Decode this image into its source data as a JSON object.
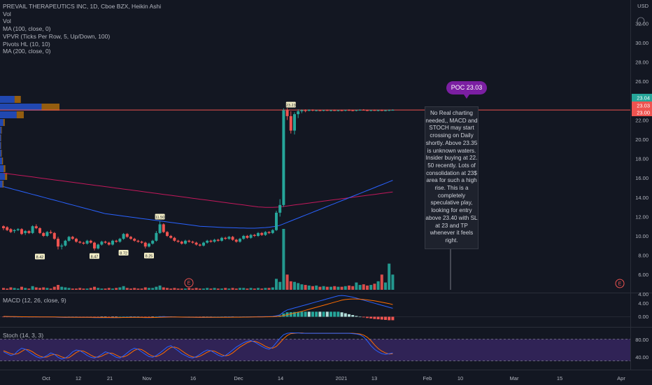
{
  "legend": {
    "title": "PREVAIL THERAPEUTICS INC, 1D, Cboe BZX, Heikin Ashi",
    "lines": [
      "Vol",
      "Vol",
      "MA (100, close, 0)",
      "VPVR (Ticks Per Row, 5, Up/Down, 100)",
      "Pivots HL (10, 10)",
      "MA (200, close, 0)"
    ]
  },
  "axis": {
    "currency": "USD",
    "price_ticks": [
      "32.00",
      "30.00",
      "28.00",
      "26.00",
      "22.00",
      "20.00",
      "18.00",
      "16.00",
      "14.00",
      "12.00",
      "10.00",
      "8.00",
      "6.00",
      "4.00"
    ],
    "badges": [
      {
        "text": "23.04",
        "color": "#26a69a"
      },
      {
        "text": "23.03",
        "color": "#ef5350"
      },
      {
        "text": "23.00",
        "color": "#ef5350"
      }
    ],
    "macd_ticks": [
      "4.00",
      "0.00"
    ],
    "stoch_ticks": [
      "80.00",
      "40.00"
    ],
    "time_labels": [
      "Oct",
      "12",
      "21",
      "Nov",
      "16",
      "Dec",
      "14",
      "2021",
      "13",
      "Feb",
      "10",
      "Mar",
      "15",
      "Apr"
    ]
  },
  "indicators": {
    "macd_label": "MACD (12, 26, close, 9)",
    "stoch_label": "Stoch (14, 3, 3)"
  },
  "poc": {
    "label": "POC 23.03",
    "value": 23.03
  },
  "annotation": "No Real charting needed,, MACD and STOCH may start crossing on Daily shortly. Above 23.35 is unknown waters. Insider buying at 22. 50 recently. Lots of consolidation at 23$ area for such a high rise. This is a completely speculative play, looking for entry above 23.40 with SL at 23 and TP whenever it feels right.",
  "pivot_labels": [
    "23.23",
    "8.42",
    "8.47",
    "8.72",
    "8.25",
    "11.50"
  ],
  "earnings_markers": [
    "E",
    "E"
  ],
  "colors": {
    "up": "#26a69a",
    "down": "#ef5350",
    "ma100": "#2962ff",
    "ma200": "#c2185b",
    "poc": "#7b1fa2",
    "macd": "#2962ff",
    "signal": "#ff6d00",
    "stoch_k": "#2962ff",
    "stoch_d": "#ff6d00"
  },
  "chart_data": {
    "type": "candlestick",
    "price_scale": [
      4,
      32
    ],
    "candles": [
      [
        11.0,
        11.1,
        10.6,
        10.8
      ],
      [
        10.9,
        11.0,
        10.5,
        10.6
      ],
      [
        10.7,
        10.8,
        10.3,
        10.4
      ],
      [
        10.5,
        10.7,
        10.3,
        10.6
      ],
      [
        10.6,
        10.8,
        10.5,
        10.7
      ],
      [
        10.7,
        10.8,
        10.1,
        10.2
      ],
      [
        10.3,
        10.6,
        10.1,
        10.5
      ],
      [
        10.5,
        10.6,
        10.2,
        10.3
      ],
      [
        10.3,
        11.1,
        10.2,
        11.0
      ],
      [
        11.0,
        11.2,
        10.7,
        10.8
      ],
      [
        10.8,
        10.9,
        10.2,
        10.3
      ],
      [
        10.3,
        10.4,
        9.9,
        10.0
      ],
      [
        10.0,
        10.5,
        9.9,
        10.4
      ],
      [
        10.4,
        10.6,
        10.2,
        10.3
      ],
      [
        10.3,
        10.4,
        9.6,
        9.7
      ],
      [
        9.7,
        9.9,
        8.6,
        8.9
      ],
      [
        8.9,
        9.2,
        8.6,
        9.0
      ],
      [
        9.0,
        9.6,
        8.9,
        9.5
      ],
      [
        9.5,
        10.0,
        9.4,
        9.9
      ],
      [
        9.9,
        10.0,
        9.6,
        9.7
      ],
      [
        9.7,
        9.8,
        9.3,
        9.4
      ],
      [
        9.4,
        9.5,
        9.2,
        9.3
      ],
      [
        9.3,
        9.4,
        9.1,
        9.2
      ],
      [
        9.2,
        9.6,
        9.1,
        9.5
      ],
      [
        9.5,
        9.6,
        9.2,
        9.3
      ],
      [
        9.3,
        9.4,
        8.5,
        8.7
      ],
      [
        8.7,
        9.2,
        8.6,
        9.1
      ],
      [
        9.1,
        9.5,
        9.0,
        9.4
      ],
      [
        9.4,
        9.5,
        9.2,
        9.3
      ],
      [
        9.3,
        9.4,
        9.0,
        9.1
      ],
      [
        9.1,
        9.6,
        9.0,
        9.5
      ],
      [
        9.5,
        9.6,
        9.3,
        9.4
      ],
      [
        9.4,
        9.8,
        9.3,
        9.7
      ],
      [
        9.7,
        10.3,
        9.6,
        10.2
      ],
      [
        10.2,
        10.3,
        9.8,
        9.9
      ],
      [
        9.9,
        10.0,
        9.6,
        9.7
      ],
      [
        9.7,
        9.8,
        9.4,
        9.5
      ],
      [
        9.5,
        9.6,
        9.3,
        9.4
      ],
      [
        9.4,
        9.5,
        9.2,
        9.3
      ],
      [
        9.3,
        9.4,
        8.7,
        8.9
      ],
      [
        8.9,
        9.3,
        8.8,
        9.2
      ],
      [
        9.2,
        9.6,
        9.1,
        9.5
      ],
      [
        9.5,
        10.5,
        9.4,
        10.3
      ],
      [
        10.3,
        11.5,
        10.2,
        11.2
      ],
      [
        11.2,
        11.3,
        10.3,
        10.4
      ],
      [
        10.4,
        10.5,
        9.9,
        10.0
      ],
      [
        10.0,
        10.1,
        9.7,
        9.8
      ],
      [
        9.8,
        9.9,
        9.4,
        9.5
      ],
      [
        9.5,
        9.6,
        9.3,
        9.4
      ],
      [
        9.4,
        9.5,
        9.1,
        9.2
      ],
      [
        9.2,
        9.6,
        9.1,
        9.5
      ],
      [
        9.5,
        9.6,
        9.3,
        9.4
      ],
      [
        9.4,
        9.5,
        9.2,
        9.3
      ],
      [
        9.3,
        9.4,
        9.0,
        9.1
      ],
      [
        9.1,
        9.2,
        8.9,
        9.0
      ],
      [
        9.0,
        9.4,
        8.9,
        9.3
      ],
      [
        9.3,
        9.6,
        9.2,
        9.5
      ],
      [
        9.5,
        9.6,
        9.3,
        9.4
      ],
      [
        9.4,
        9.7,
        9.3,
        9.6
      ],
      [
        9.6,
        9.7,
        9.4,
        9.5
      ],
      [
        9.5,
        9.9,
        9.4,
        9.8
      ],
      [
        9.8,
        9.9,
        9.6,
        9.7
      ],
      [
        9.7,
        10.0,
        9.6,
        9.9
      ],
      [
        9.9,
        10.0,
        9.5,
        9.6
      ],
      [
        9.6,
        9.7,
        9.3,
        9.4
      ],
      [
        9.4,
        9.8,
        9.3,
        9.7
      ],
      [
        9.7,
        10.1,
        9.6,
        10.0
      ],
      [
        10.0,
        10.1,
        9.7,
        9.8
      ],
      [
        9.8,
        10.2,
        9.7,
        10.1
      ],
      [
        10.1,
        10.2,
        9.9,
        10.0
      ],
      [
        10.0,
        10.4,
        9.9,
        10.3
      ],
      [
        10.3,
        10.4,
        10.0,
        10.1
      ],
      [
        10.1,
        10.5,
        10.0,
        10.4
      ],
      [
        10.4,
        10.5,
        10.2,
        10.3
      ],
      [
        10.3,
        10.7,
        10.2,
        10.6
      ],
      [
        10.6,
        12.6,
        10.5,
        12.4
      ],
      [
        12.4,
        13.8,
        12.0,
        13.2
      ],
      [
        13.2,
        23.2,
        13.0,
        23.0
      ],
      [
        23.0,
        23.23,
        22.0,
        22.4
      ],
      [
        22.4,
        22.9,
        20.6,
        20.9
      ],
      [
        20.9,
        22.8,
        20.5,
        22.6
      ],
      [
        22.6,
        23.1,
        22.2,
        22.9
      ],
      [
        22.9,
        23.1,
        22.7,
        23.0
      ],
      [
        23.0,
        23.1,
        22.8,
        22.95
      ],
      [
        22.95,
        23.1,
        22.9,
        23.05
      ],
      [
        23.05,
        23.1,
        22.9,
        22.98
      ],
      [
        22.98,
        23.06,
        22.9,
        23.0
      ],
      [
        23.0,
        23.06,
        22.92,
        22.96
      ],
      [
        22.96,
        23.05,
        22.9,
        23.02
      ],
      [
        23.02,
        23.08,
        22.94,
        22.97
      ],
      [
        22.97,
        23.05,
        22.9,
        23.01
      ],
      [
        23.01,
        23.07,
        22.93,
        22.98
      ],
      [
        22.98,
        23.04,
        22.9,
        23.0
      ],
      [
        23.0,
        23.06,
        22.92,
        22.96
      ],
      [
        22.96,
        23.05,
        22.9,
        23.03
      ],
      [
        23.03,
        23.1,
        22.95,
        23.0
      ],
      [
        23.0,
        23.06,
        22.9,
        22.97
      ],
      [
        22.97,
        23.05,
        22.9,
        23.02
      ],
      [
        23.02,
        23.1,
        22.96,
        23.05
      ],
      [
        23.05,
        23.12,
        22.98,
        23.01
      ],
      [
        23.01,
        23.08,
        22.92,
        22.96
      ],
      [
        22.96,
        23.05,
        22.9,
        23.02
      ],
      [
        23.02,
        23.07,
        22.95,
        22.99
      ],
      [
        22.99,
        23.06,
        22.9,
        23.01
      ],
      [
        23.01,
        23.08,
        22.94,
        22.97
      ],
      [
        22.97,
        23.05,
        22.9,
        23.0
      ],
      [
        23.0,
        23.08,
        22.92,
        23.03
      ],
      [
        23.03,
        23.1,
        22.98,
        23.04
      ]
    ],
    "volume_rel": [
      3,
      2,
      4,
      3,
      2,
      5,
      3,
      2,
      6,
      4,
      3,
      4,
      3,
      2,
      5,
      8,
      5,
      4,
      3,
      2,
      2,
      3,
      2,
      2,
      3,
      5,
      3,
      2,
      2,
      3,
      2,
      3,
      4,
      6,
      3,
      2,
      3,
      2,
      2,
      4,
      3,
      3,
      5,
      7,
      4,
      3,
      2,
      3,
      2,
      2,
      2,
      3,
      2,
      3,
      2,
      2,
      3,
      2,
      3,
      2,
      2,
      3,
      2,
      3,
      2,
      3,
      3,
      2,
      3,
      2,
      3,
      2,
      3,
      3,
      4,
      18,
      13,
      100,
      25,
      14,
      13,
      11,
      9,
      8,
      7,
      6,
      7,
      5,
      6,
      5,
      5,
      6,
      5,
      5,
      6,
      7,
      6,
      12,
      8,
      9,
      7,
      8,
      10,
      14,
      25,
      12,
      43,
      25
    ],
    "ma100": [
      15.1,
      15.0,
      14.9,
      14.8,
      14.7,
      14.6,
      14.5,
      14.4,
      14.3,
      14.2,
      14.1,
      14.0,
      13.9,
      13.8,
      13.7,
      13.6,
      13.5,
      13.4,
      13.3,
      13.2,
      13.1,
      13.0,
      12.9,
      12.8,
      12.7,
      12.6,
      12.5,
      12.4,
      12.3,
      12.25,
      12.2,
      12.15,
      12.1,
      12.05,
      12.0,
      11.95,
      11.9,
      11.85,
      11.8,
      11.75,
      11.7,
      11.65,
      11.6,
      11.55,
      11.5,
      11.45,
      11.4,
      11.35,
      11.3,
      11.25,
      11.2,
      11.15,
      11.1,
      11.05,
      11.0,
      10.98,
      10.96,
      10.94,
      10.92,
      10.9,
      10.88,
      10.86,
      10.85,
      10.84,
      10.83,
      10.82,
      10.81,
      10.8,
      10.8,
      10.8,
      10.82,
      10.84,
      10.86,
      10.9,
      10.95,
      11.0,
      11.1,
      11.25,
      11.4,
      11.55,
      11.7,
      11.85,
      12.0,
      12.15,
      12.3,
      12.45,
      12.6,
      12.75,
      12.9,
      13.05,
      13.2,
      13.35,
      13.5,
      13.65,
      13.8,
      13.95,
      14.1,
      14.25,
      14.4,
      14.55,
      14.7,
      14.85,
      15.0,
      15.15,
      15.3,
      15.45,
      15.6,
      15.75
    ],
    "ma200": [
      16.5,
      16.45,
      16.4,
      16.35,
      16.3,
      16.25,
      16.2,
      16.15,
      16.1,
      16.05,
      16.0,
      15.95,
      15.9,
      15.85,
      15.8,
      15.75,
      15.7,
      15.65,
      15.6,
      15.55,
      15.5,
      15.45,
      15.4,
      15.35,
      15.3,
      15.25,
      15.2,
      15.15,
      15.1,
      15.05,
      15.0,
      14.95,
      14.9,
      14.85,
      14.8,
      14.75,
      14.7,
      14.65,
      14.6,
      14.55,
      14.5,
      14.45,
      14.4,
      14.35,
      14.3,
      14.25,
      14.2,
      14.15,
      14.1,
      14.05,
      14.0,
      13.95,
      13.9,
      13.85,
      13.8,
      13.75,
      13.7,
      13.65,
      13.6,
      13.55,
      13.5,
      13.45,
      13.4,
      13.35,
      13.3,
      13.25,
      13.2,
      13.15,
      13.1,
      13.05,
      13.0,
      12.98,
      12.96,
      12.95,
      12.95,
      12.97,
      13.0,
      13.05,
      13.1,
      13.15,
      13.2,
      13.25,
      13.3,
      13.35,
      13.4,
      13.45,
      13.5,
      13.55,
      13.6,
      13.65,
      13.7,
      13.75,
      13.8,
      13.85,
      13.9,
      13.95,
      14.0,
      14.05,
      14.1,
      14.15,
      14.2,
      14.25,
      14.3,
      14.35,
      14.4,
      14.45,
      14.5,
      14.55
    ],
    "vpvr_rel": [
      0.35,
      1.0,
      0.4,
      0.08,
      0.03,
      0.02,
      0.02,
      0.03,
      0.05,
      0.09,
      0.12,
      0.06
    ],
    "macd": [
      0.05,
      0.02,
      -0.01,
      -0.02,
      -0.03,
      -0.04,
      -0.05,
      -0.06,
      -0.05,
      -0.04,
      -0.05,
      -0.06,
      -0.07,
      -0.08,
      -0.1,
      -0.15,
      -0.18,
      -0.2,
      -0.18,
      -0.17,
      -0.17,
      -0.18,
      -0.19,
      -0.19,
      -0.2,
      -0.24,
      -0.26,
      -0.25,
      -0.25,
      -0.26,
      -0.25,
      -0.24,
      -0.22,
      -0.17,
      -0.15,
      -0.15,
      -0.16,
      -0.18,
      -0.2,
      -0.24,
      -0.25,
      -0.23,
      -0.15,
      -0.02,
      0.02,
      0.0,
      -0.03,
      -0.07,
      -0.1,
      -0.13,
      -0.14,
      -0.15,
      -0.16,
      -0.18,
      -0.2,
      -0.2,
      -0.18,
      -0.18,
      -0.16,
      -0.15,
      -0.12,
      -0.11,
      -0.08,
      -0.08,
      -0.1,
      -0.09,
      -0.06,
      -0.05,
      -0.03,
      -0.02,
      0.02,
      0.03,
      0.06,
      0.07,
      0.1,
      0.3,
      0.55,
      1.4,
      2.0,
      2.3,
      2.6,
      2.9,
      3.2,
      3.5,
      3.8,
      4.1,
      4.4,
      4.7,
      5.0,
      5.3,
      5.6,
      5.9,
      6.2,
      6.3,
      6.2,
      6.0,
      5.8,
      5.5,
      5.2,
      4.9,
      4.6,
      4.3,
      4.0,
      3.7,
      3.4,
      3.1,
      2.8,
      2.5
    ],
    "macd_signal": [
      0.1,
      0.08,
      0.06,
      0.04,
      0.02,
      0.0,
      -0.01,
      -0.02,
      -0.03,
      -0.03,
      -0.04,
      -0.04,
      -0.05,
      -0.05,
      -0.06,
      -0.08,
      -0.1,
      -0.12,
      -0.13,
      -0.14,
      -0.15,
      -0.15,
      -0.16,
      -0.16,
      -0.17,
      -0.18,
      -0.19,
      -0.2,
      -0.21,
      -0.21,
      -0.22,
      -0.22,
      -0.22,
      -0.21,
      -0.2,
      -0.19,
      -0.19,
      -0.19,
      -0.19,
      -0.2,
      -0.21,
      -0.21,
      -0.2,
      -0.16,
      -0.13,
      -0.1,
      -0.09,
      -0.09,
      -0.09,
      -0.1,
      -0.11,
      -0.12,
      -0.13,
      -0.14,
      -0.15,
      -0.16,
      -0.16,
      -0.17,
      -0.17,
      -0.16,
      -0.16,
      -0.15,
      -0.14,
      -0.13,
      -0.12,
      -0.12,
      -0.11,
      -0.1,
      -0.09,
      -0.07,
      -0.06,
      -0.04,
      -0.02,
      0.0,
      0.02,
      0.08,
      0.15,
      0.35,
      0.6,
      0.85,
      1.1,
      1.35,
      1.6,
      1.9,
      2.2,
      2.5,
      2.8,
      3.1,
      3.4,
      3.7,
      4.0,
      4.3,
      4.6,
      4.9,
      5.1,
      5.2,
      5.25,
      5.25,
      5.2,
      5.1,
      5.0,
      4.85,
      4.7,
      4.5,
      4.3,
      4.1,
      3.9,
      3.6
    ],
    "stoch_k": [
      45,
      40,
      35,
      38,
      48,
      55,
      52,
      45,
      38,
      32,
      28,
      30,
      35,
      42,
      38,
      30,
      25,
      28,
      35,
      45,
      50,
      48,
      42,
      35,
      30,
      28,
      32,
      38,
      45,
      42,
      36,
      30,
      28,
      34,
      42,
      50,
      55,
      52,
      45,
      38,
      32,
      30,
      35,
      42,
      50,
      58,
      62,
      55,
      48,
      40,
      35,
      30,
      28,
      32,
      38,
      45,
      50,
      48,
      42,
      36,
      32,
      35,
      42,
      50,
      58,
      64,
      70,
      74,
      76,
      72,
      66,
      60,
      55,
      52,
      58,
      70,
      82,
      92,
      96,
      97,
      97,
      97,
      96,
      96,
      96,
      96,
      96,
      96,
      96,
      96,
      96,
      96,
      96,
      96,
      96,
      96,
      95,
      94,
      92,
      86,
      75,
      62,
      52,
      45,
      40,
      38,
      40,
      42
    ],
    "stoch_d": [
      48,
      44,
      40,
      38,
      40,
      46,
      52,
      50,
      45,
      38,
      33,
      30,
      31,
      36,
      38,
      36,
      31,
      28,
      29,
      36,
      43,
      48,
      47,
      42,
      36,
      31,
      30,
      33,
      38,
      42,
      41,
      36,
      31,
      31,
      35,
      42,
      49,
      53,
      51,
      45,
      38,
      33,
      32,
      36,
      42,
      50,
      57,
      58,
      55,
      48,
      41,
      35,
      31,
      30,
      33,
      38,
      44,
      48,
      47,
      42,
      37,
      34,
      36,
      42,
      50,
      58,
      64,
      70,
      74,
      74,
      71,
      66,
      60,
      56,
      55,
      60,
      70,
      81,
      90,
      95,
      96,
      97,
      97,
      96,
      96,
      96,
      96,
      96,
      96,
      96,
      96,
      96,
      96,
      96,
      96,
      96,
      96,
      95,
      94,
      91,
      85,
      76,
      64,
      54,
      47,
      42,
      39,
      40
    ]
  }
}
